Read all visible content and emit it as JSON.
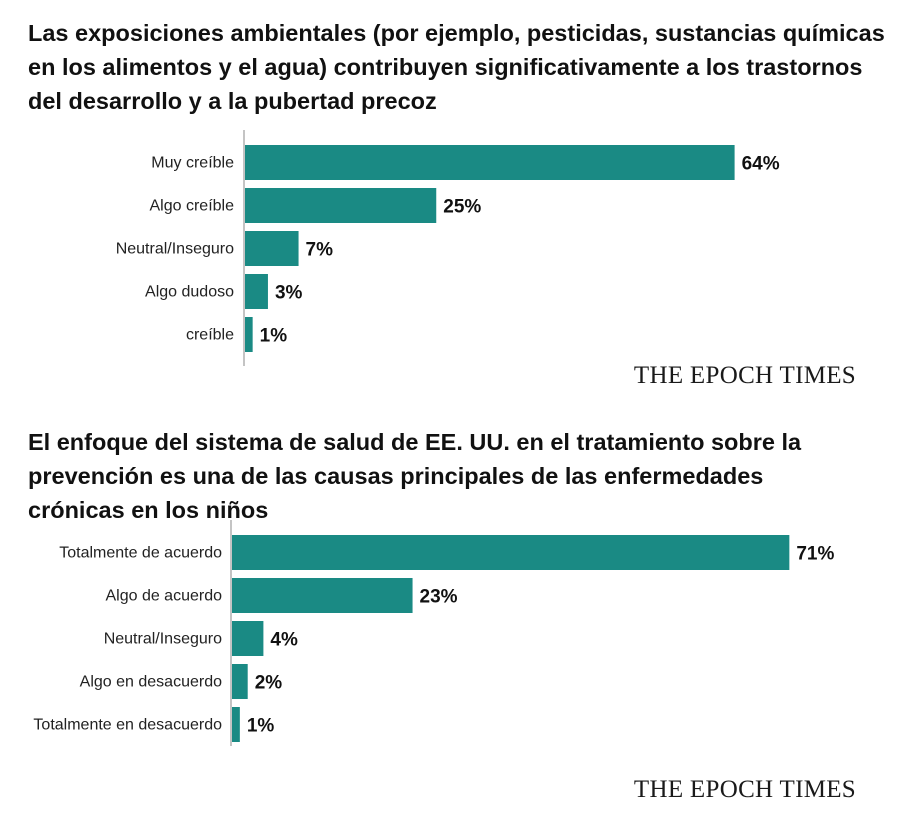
{
  "chart_data": [
    {
      "type": "bar",
      "orientation": "horizontal",
      "title": "Las exposiciones ambientales (por ejemplo, pesticidas, sustancias químicas en los alimentos y el agua) contribuyen significativamente a los trastornos del desarrollo y a la pubertad precoz",
      "categories": [
        "Muy creíble",
        "Algo creíble",
        "Neutral/Inseguro",
        "Algo dudoso",
        "creíble"
      ],
      "values": [
        64,
        25,
        7,
        3,
        1
      ],
      "value_labels": [
        "64%",
        "25%",
        "7%",
        "3%",
        "1%"
      ],
      "unit": "%",
      "color": "#1a8a84",
      "grid": false,
      "legend": "none"
    },
    {
      "type": "bar",
      "orientation": "horizontal",
      "title": "El enfoque del sistema de salud de EE. UU. en el tratamiento sobre la prevención es una de las causas principales de las enfermedades crónicas en los niños",
      "categories": [
        "Totalmente de acuerdo",
        "Algo de acuerdo",
        "Neutral/Inseguro",
        "Algo en desacuerdo",
        "Totalmente en desacuerdo"
      ],
      "values": [
        71,
        23,
        4,
        2,
        1
      ],
      "value_labels": [
        "71%",
        "23%",
        "4%",
        "2%",
        "1%"
      ],
      "unit": "%",
      "color": "#1a8a84",
      "grid": false,
      "legend": "none"
    }
  ],
  "brand": {
    "chart1": "THE EPOCH TIMES",
    "chart2": "THE EPOCH TIMES"
  }
}
